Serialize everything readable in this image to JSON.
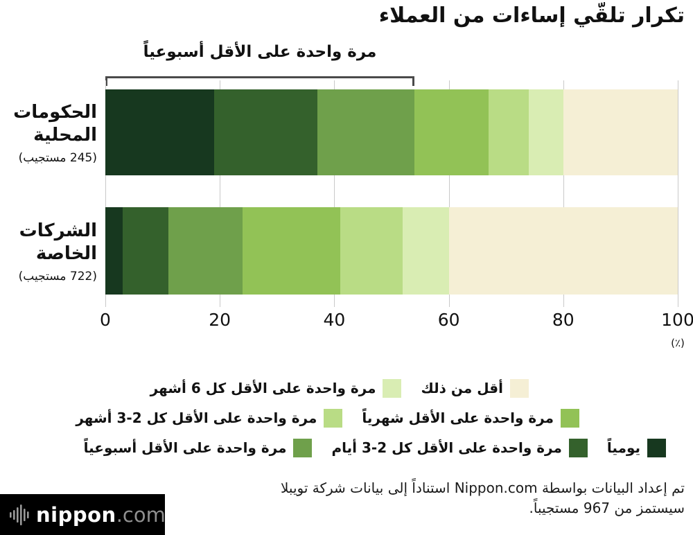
{
  "title": "تكرار تلقّي إساءات من العملاء",
  "annotation": {
    "label": "مرة واحدة على الأقل أسبوعياً",
    "span_percent": 54
  },
  "chart_data": {
    "type": "bar",
    "variant": "horizontal-stacked",
    "xlim": [
      0,
      100
    ],
    "x_ticks": [
      0,
      20,
      40,
      60,
      80,
      100
    ],
    "x_axis_unit_label": "(٪)",
    "grid": "vertical",
    "legend_position": "bottom",
    "categories": [
      "يومياً",
      "مرة واحدة على الأقل كل 2-3 أيام",
      "مرة واحدة على الأقل أسبوعياً",
      "مرة واحدة على الأقل شهرياً",
      "مرة واحدة على الأقل كل 2-3 أشهر",
      "مرة واحدة على الأقل كل 6 أشهر",
      "أقل من ذلك"
    ],
    "colors": [
      "#17381f",
      "#34612c",
      "#6fa04b",
      "#92c256",
      "#b9dc85",
      "#d9edb3",
      "#f5efd5"
    ],
    "series": [
      {
        "group_label_lines": [
          "الحكومات",
          "المحلية"
        ],
        "respondents_label": "(245 مستجيب)",
        "values": [
          19,
          18,
          17,
          13,
          7,
          6,
          20
        ]
      },
      {
        "group_label_lines": [
          "الشركات",
          "الخاصة"
        ],
        "respondents_label": "(722 مستجيب)",
        "values": [
          3,
          8,
          13,
          17,
          11,
          8,
          40
        ]
      }
    ]
  },
  "legend": {
    "rows": [
      {
        "items": [
          {
            "label": "أقل من ذلك",
            "color": "#f5efd5"
          },
          {
            "label": "مرة واحدة على الأقل كل 6 أشهر",
            "color": "#d9edb3"
          }
        ]
      },
      {
        "items": [
          {
            "label": "مرة واحدة على الأقل شهرياً",
            "color": "#92c256"
          },
          {
            "label": "مرة واحدة على الأقل كل 2-3 أشهر",
            "color": "#b9dc85"
          }
        ]
      },
      {
        "items": [
          {
            "label": "يومياً",
            "color": "#17381f"
          },
          {
            "label": "مرة واحدة على الأقل كل 2-3 أيام",
            "color": "#34612c"
          },
          {
            "label": "مرة واحدة على الأقل أسبوعياً",
            "color": "#6fa04b"
          }
        ]
      }
    ]
  },
  "source": {
    "line1": "تم إعداد البيانات بواسطة Nippon.com استناداً إلى بيانات شركة تويبلا",
    "line2": "سيستمز من 967 مستجيباً."
  },
  "logo": {
    "brand": "nippon",
    "tld": ".com"
  }
}
